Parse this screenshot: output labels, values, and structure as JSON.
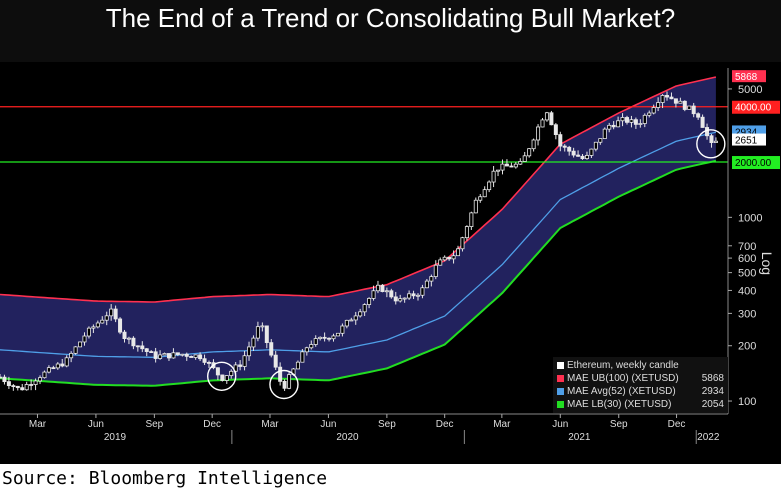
{
  "title": "The End of a Trend or Consolidating Bull Market?",
  "source": "Source: Bloomberg Intelligence",
  "colors": {
    "band_fill": "#22225e",
    "upper": "#ff3050",
    "avg": "#4f9fe8",
    "lower": "#22dd22",
    "hline_red": "#ff2020",
    "hline_green": "#22ee22",
    "candle": "#e8e8e8"
  },
  "chart_data": {
    "type": "candlestick",
    "scale": "log",
    "yticks": [
      100,
      200,
      300,
      400,
      500,
      600,
      700,
      1000,
      5000
    ],
    "ylabel": "Log",
    "months": [
      {
        "label": "Mar",
        "date": "2019-03-01"
      },
      {
        "label": "Jun",
        "date": "2019-06-01"
      },
      {
        "label": "Sep",
        "date": "2019-09-01"
      },
      {
        "label": "Dec",
        "date": "2019-12-01"
      },
      {
        "label": "Mar",
        "date": "2020-03-01"
      },
      {
        "label": "Jun",
        "date": "2020-06-01"
      },
      {
        "label": "Sep",
        "date": "2020-09-01"
      },
      {
        "label": "Dec",
        "date": "2020-12-01"
      },
      {
        "label": "Mar",
        "date": "2021-03-01"
      },
      {
        "label": "Jun",
        "date": "2021-06-01"
      },
      {
        "label": "Sep",
        "date": "2021-09-01"
      },
      {
        "label": "Dec",
        "date": "2021-12-01"
      }
    ],
    "years": [
      {
        "label": "2019",
        "date": "2019-07-01"
      },
      {
        "label": "2020",
        "date": "2020-07-01"
      },
      {
        "label": "2021",
        "date": "2021-07-01"
      },
      {
        "label": "2022",
        "date": "2022-01-20"
      }
    ],
    "x_range": [
      "2019-01-01",
      "2022-02-20"
    ],
    "y_range": [
      85,
      6500
    ],
    "hlines": [
      {
        "value": 4000,
        "label": "4000.00",
        "color": "#ff2020"
      },
      {
        "value": 2000,
        "label": "2000.00",
        "color": "#22ee22"
      }
    ],
    "last_values": [
      {
        "label": "5868",
        "value": 5868,
        "style": "upper"
      },
      {
        "label": "2934",
        "value": 2934,
        "style": "avg"
      },
      {
        "label": "2651",
        "value": 2651,
        "style": "price"
      }
    ],
    "circled_dates": [
      "2019-12-16",
      "2020-03-23",
      "2022-01-24"
    ],
    "legend": [
      {
        "name": "Ethereum, weekly candle",
        "value": "",
        "color": "#ffffff"
      },
      {
        "name": "MAE UB(100) (XETUSD)",
        "value": "5868",
        "color": "#ff3050"
      },
      {
        "name": "MAE Avg(52) (XETUSD)",
        "value": "2934",
        "color": "#4f9fe8"
      },
      {
        "name": "MAE LB(30) (XETUSD)",
        "value": "2054",
        "color": "#22dd22"
      }
    ],
    "price_anchors": [
      [
        "2019-01-01",
        135
      ],
      [
        "2019-02-01",
        115
      ],
      [
        "2019-03-01",
        135
      ],
      [
        "2019-04-15",
        165
      ],
      [
        "2019-05-15",
        230
      ],
      [
        "2019-06-24",
        310
      ],
      [
        "2019-07-15",
        225
      ],
      [
        "2019-09-01",
        175
      ],
      [
        "2019-10-15",
        180
      ],
      [
        "2019-11-15",
        175
      ],
      [
        "2019-12-16",
        133
      ],
      [
        "2020-01-15",
        160
      ],
      [
        "2020-02-15",
        265
      ],
      [
        "2020-03-16",
        130
      ],
      [
        "2020-03-23",
        120
      ],
      [
        "2020-05-01",
        205
      ],
      [
        "2020-06-15",
        235
      ],
      [
        "2020-07-20",
        315
      ],
      [
        "2020-08-20",
        420
      ],
      [
        "2020-09-20",
        350
      ],
      [
        "2020-10-25",
        395
      ],
      [
        "2020-11-20",
        560
      ],
      [
        "2020-12-20",
        640
      ],
      [
        "2021-01-20",
        1250
      ],
      [
        "2021-02-20",
        1850
      ],
      [
        "2021-04-01",
        1950
      ],
      [
        "2021-05-10",
        3900
      ],
      [
        "2021-06-01",
        2450
      ],
      [
        "2021-07-10",
        2050
      ],
      [
        "2021-08-15",
        3150
      ],
      [
        "2021-09-10",
        3400
      ],
      [
        "2021-10-01",
        3200
      ],
      [
        "2021-11-10",
        4750
      ],
      [
        "2021-12-10",
        4100
      ],
      [
        "2022-01-05",
        3600
      ],
      [
        "2022-01-24",
        2450
      ],
      [
        "2022-02-07",
        2651
      ]
    ],
    "mae_avg_anchors": [
      [
        "2019-01-01",
        190
      ],
      [
        "2019-06-01",
        175
      ],
      [
        "2019-09-01",
        173
      ],
      [
        "2019-12-01",
        185
      ],
      [
        "2020-03-01",
        190
      ],
      [
        "2020-06-01",
        185
      ],
      [
        "2020-09-01",
        215
      ],
      [
        "2020-12-01",
        290
      ],
      [
        "2021-03-01",
        550
      ],
      [
        "2021-06-01",
        1250
      ],
      [
        "2021-09-01",
        1850
      ],
      [
        "2021-12-01",
        2600
      ],
      [
        "2022-02-07",
        2934
      ]
    ],
    "upper_pct": 100,
    "lower_pct": -30
  }
}
